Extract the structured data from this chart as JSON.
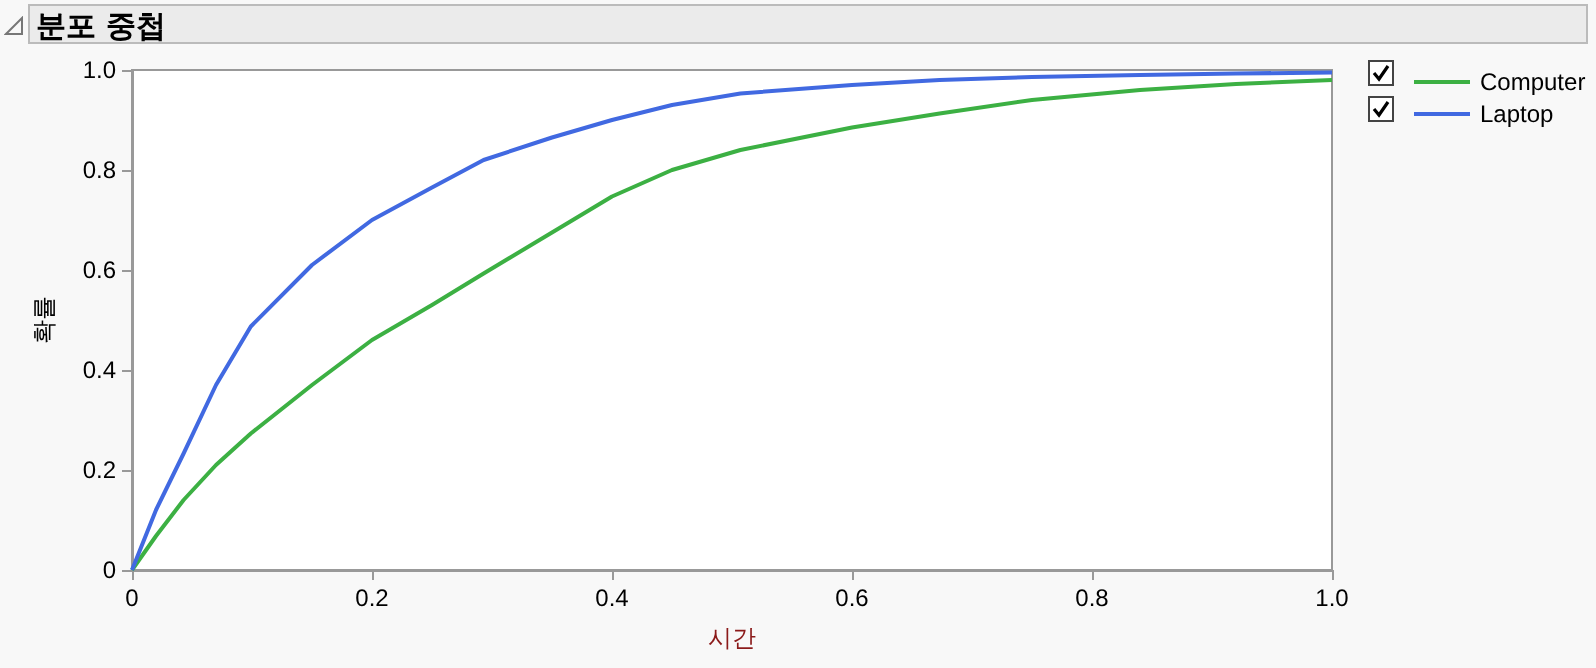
{
  "chart_data": {
    "type": "line",
    "title": "분포 중첩",
    "xlabel": "시간",
    "ylabel": "확률",
    "xlim": [
      0,
      1
    ],
    "ylim": [
      0,
      1
    ],
    "xticks": [
      0,
      0.2,
      0.4,
      0.6,
      0.8,
      {
        "value": 1,
        "label": "1.0"
      }
    ],
    "yticks": [
      0,
      0.2,
      0.4,
      0.6,
      0.8,
      {
        "value": 1,
        "label": "1.0"
      }
    ],
    "grid": false,
    "legend": "top right",
    "marker": "none",
    "line_style": "solid",
    "series": [
      {
        "name": "Computer",
        "color": "#3cb043",
        "x": [
          0,
          0.02,
          0.043,
          0.07,
          0.099,
          0.15,
          0.2,
          0.25,
          0.293,
          0.35,
          0.4,
          0.45,
          0.507,
          0.6,
          0.673,
          0.75,
          0.84,
          0.92,
          1.0
        ],
        "values": [
          0,
          0.068,
          0.14,
          0.21,
          0.273,
          0.37,
          0.46,
          0.53,
          0.593,
          0.675,
          0.747,
          0.8,
          0.84,
          0.885,
          0.913,
          0.94,
          0.96,
          0.972,
          0.98
        ]
      },
      {
        "name": "Laptop",
        "color": "#4169e1",
        "x": [
          0,
          0.02,
          0.043,
          0.07,
          0.099,
          0.15,
          0.2,
          0.25,
          0.293,
          0.35,
          0.4,
          0.45,
          0.507,
          0.6,
          0.673,
          0.75,
          0.84,
          0.92,
          1.0
        ],
        "values": [
          0,
          0.12,
          0.233,
          0.37,
          0.487,
          0.61,
          0.7,
          0.765,
          0.82,
          0.865,
          0.9,
          0.93,
          0.953,
          0.97,
          0.98,
          0.986,
          0.99,
          0.993,
          0.995
        ]
      }
    ]
  }
}
